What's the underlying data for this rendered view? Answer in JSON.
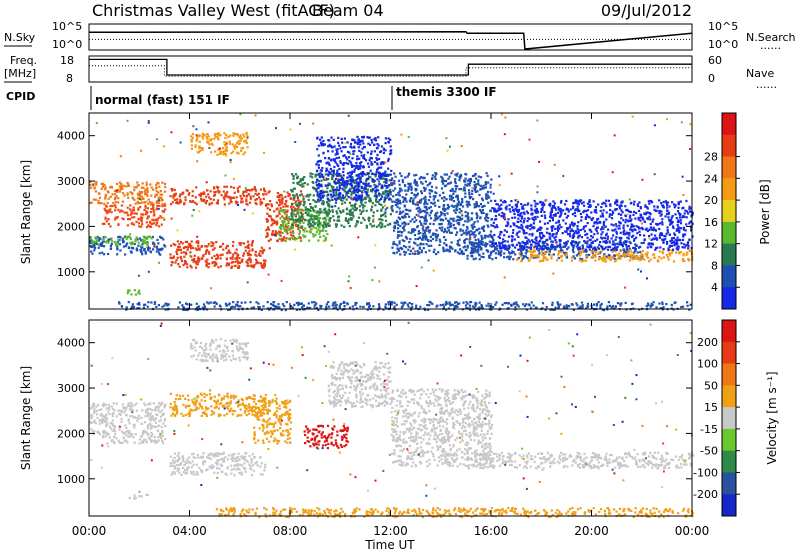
{
  "header": {
    "title": "Christmas Valley West (fitACF)",
    "beam": "Beam 04",
    "date": "09/Jul/2012"
  },
  "labels": {
    "nsky": "N.Sky",
    "nsearch": "N.Search",
    "freq_line1": "Freq.",
    "freq_line2": "[MHz]",
    "nave": "Nave",
    "cpid": "CPID",
    "mode1": "normal (fast) 151 IF",
    "mode2": "themis 3300 IF",
    "nsky_ticks": [
      "10^5",
      "10^0"
    ],
    "nsearch_ticks": [
      "10^5",
      "10^0"
    ],
    "freq_ticks": [
      "18",
      "8"
    ],
    "nave_ticks": [
      "60",
      "0"
    ],
    "dotted_legend": "......"
  },
  "chart_data": [
    {
      "type": "line",
      "name": "noise-panel",
      "y_scale": "log",
      "ylim": [
        "1e0",
        "1e5"
      ],
      "series": [
        {
          "name": "N.Sky",
          "style": "solid",
          "x": [
            0,
            15,
            15.05,
            17.3,
            17.35,
            24
          ],
          "y": [
            "3e3",
            "4e3",
            "2e3",
            "2e3",
            "1e0",
            "2e3"
          ]
        },
        {
          "name": "N.Search",
          "style": "dotted",
          "x": [
            0,
            24
          ],
          "y": [
            "1e2",
            "1e2"
          ]
        }
      ]
    },
    {
      "type": "line",
      "name": "freq-nave-panel",
      "series": [
        {
          "name": "Freq.",
          "style": "solid",
          "x": [
            0,
            3.1,
            3.1,
            15.1,
            15.1,
            17.3,
            17.3,
            24
          ],
          "y": [
            17,
            17,
            10.5,
            10.5,
            15,
            15,
            15,
            15
          ]
        },
        {
          "name": "Nave",
          "style": "dotted",
          "x": [
            0,
            3,
            3,
            15,
            15,
            24
          ],
          "y": [
            38,
            38,
            12,
            12,
            33,
            33
          ]
        }
      ],
      "xlim": [
        0,
        24
      ]
    },
    {
      "type": "heatmap",
      "name": "power-panel",
      "ylabel": "Slant Range [km]",
      "yticks": [
        1000,
        2000,
        3000,
        4000
      ],
      "ylim": [
        180,
        4500
      ],
      "colorbar_label": "Power [dB]",
      "colorbar_ticks": [
        "4",
        "8",
        "12",
        "16",
        "20",
        "24",
        "28"
      ],
      "colorbar_colors": [
        "#1428e6",
        "#1e50b4",
        "#2a7a50",
        "#5ab82e",
        "#e6d21e",
        "#f59a14",
        "#f07814",
        "#e83c14",
        "#dc1414"
      ],
      "bands": [
        {
          "t0": 0.0,
          "t1": 3.0,
          "r0": 2500,
          "r1": 3000,
          "color": "#f07814"
        },
        {
          "t0": 0.5,
          "t1": 3.0,
          "r0": 2000,
          "r1": 2500,
          "color": "#f04a14"
        },
        {
          "t0": 0.0,
          "t1": 3.0,
          "r0": 1400,
          "r1": 1800,
          "color": "#1e50b4"
        },
        {
          "t0": 0.0,
          "t1": 2.5,
          "r0": 1600,
          "r1": 1800,
          "color": "#5ab82e"
        },
        {
          "t0": 1.5,
          "t1": 2.2,
          "r0": 520,
          "r1": 640,
          "color": "#5ab82e"
        },
        {
          "t0": 3.2,
          "t1": 7.0,
          "r0": 2500,
          "r1": 2900,
          "color": "#e83c14"
        },
        {
          "t0": 3.2,
          "t1": 7.0,
          "r0": 1100,
          "r1": 1700,
          "color": "#e83c14"
        },
        {
          "t0": 4.0,
          "t1": 6.3,
          "r0": 3600,
          "r1": 4100,
          "color": "#f59a14"
        },
        {
          "t0": 7.0,
          "t1": 8.5,
          "r0": 1700,
          "r1": 2800,
          "color": "#e83c14"
        },
        {
          "t0": 7.5,
          "t1": 9.5,
          "r0": 1700,
          "r1": 2400,
          "color": "#5ab82e"
        },
        {
          "t0": 8.0,
          "t1": 12.0,
          "r0": 2000,
          "r1": 3200,
          "color": "#2a7a50"
        },
        {
          "t0": 9.0,
          "t1": 12.0,
          "r0": 2600,
          "r1": 4000,
          "color": "#1428e6"
        },
        {
          "t0": 12.0,
          "t1": 16.0,
          "r0": 1400,
          "r1": 3200,
          "color": "#1e50b4"
        },
        {
          "t0": 15.0,
          "t1": 22.0,
          "r0": 1300,
          "r1": 1700,
          "color": "#1e50b4"
        },
        {
          "t0": 17.0,
          "t1": 24.0,
          "r0": 1250,
          "r1": 1500,
          "color": "#f59a14"
        },
        {
          "t0": 16.0,
          "t1": 24.0,
          "r0": 1500,
          "r1": 2600,
          "color": "#1428e6"
        },
        {
          "t0": 1.0,
          "t1": 24.0,
          "r0": 180,
          "r1": 360,
          "color": "#1e50b4"
        }
      ]
    },
    {
      "type": "heatmap",
      "name": "velocity-panel",
      "ylabel": "Slant Range [km]",
      "xlabel": "Time UT",
      "xticks": [
        "00:00",
        "04:00",
        "08:00",
        "12:00",
        "16:00",
        "20:00",
        "00:00"
      ],
      "yticks": [
        1000,
        2000,
        3000,
        4000
      ],
      "ylim": [
        180,
        4500
      ],
      "colorbar_label": "Velocity [m s⁻¹]",
      "colorbar_ticks": [
        "200",
        "100",
        "50",
        "15",
        "-15",
        "-50",
        "-100",
        "-200"
      ],
      "colorbar_colors": [
        "#1428c8",
        "#2a50a0",
        "#2e8a46",
        "#6ac82e",
        "#c8c8c8",
        "#f0a014",
        "#f07814",
        "#e83c14",
        "#dc1414"
      ],
      "bands": [
        {
          "t0": 0.0,
          "t1": 3.0,
          "r0": 2000,
          "r1": 2700,
          "color": "#c8c8c8"
        },
        {
          "t0": 0.5,
          "t1": 3.0,
          "r0": 1800,
          "r1": 2100,
          "color": "#c8c8c8"
        },
        {
          "t0": 1.5,
          "t1": 2.3,
          "r0": 580,
          "r1": 690,
          "color": "#c8c8c8"
        },
        {
          "t0": 3.2,
          "t1": 7.0,
          "r0": 2400,
          "r1": 2900,
          "color": "#f0a014"
        },
        {
          "t0": 3.2,
          "t1": 7.0,
          "r0": 1100,
          "r1": 1600,
          "color": "#c8c8c8"
        },
        {
          "t0": 4.0,
          "t1": 6.3,
          "r0": 3600,
          "r1": 4100,
          "color": "#c8c8c8"
        },
        {
          "t0": 6.5,
          "t1": 8.0,
          "r0": 1800,
          "r1": 2800,
          "color": "#f0a014"
        },
        {
          "t0": 8.5,
          "t1": 10.3,
          "r0": 1700,
          "r1": 2200,
          "color": "#dc1414"
        },
        {
          "t0": 9.5,
          "t1": 12.0,
          "r0": 2600,
          "r1": 3600,
          "color": "#c8c8c8"
        },
        {
          "t0": 12.0,
          "t1": 16.0,
          "r0": 1300,
          "r1": 3000,
          "color": "#c8c8c8"
        },
        {
          "t0": 15.0,
          "t1": 24.0,
          "r0": 1250,
          "r1": 1600,
          "color": "#c8c8c8"
        },
        {
          "t0": 5.0,
          "t1": 24.0,
          "r0": 180,
          "r1": 380,
          "color": "#f0a014"
        }
      ]
    }
  ]
}
